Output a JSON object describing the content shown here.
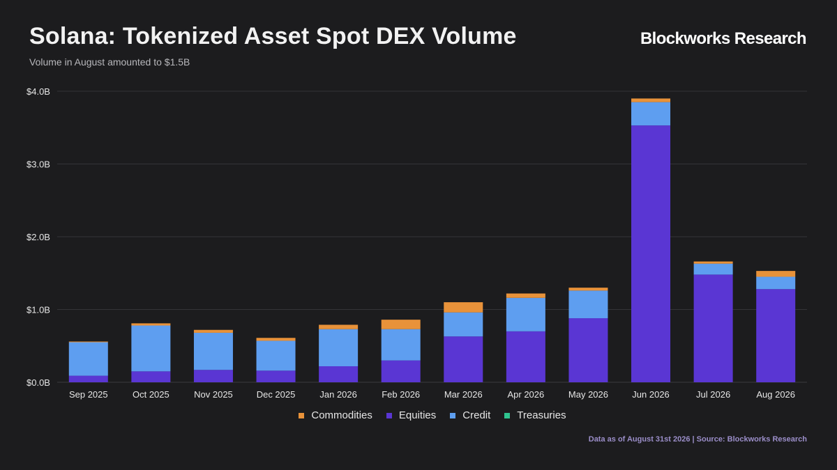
{
  "header": {
    "title": "Solana: Tokenized Asset Spot DEX Volume",
    "subtitle": "Volume in August amounted to $1.5B",
    "brand": "Blockworks Research"
  },
  "footer": {
    "source": "Data as of August 31st 2026 | Source: Blockworks Research"
  },
  "chart_data": {
    "type": "bar",
    "stacked": true,
    "title": "Solana: Tokenized Asset Spot DEX Volume",
    "subtitle": "Volume in August amounted to $1.5B",
    "categories": [
      "Sep 2025",
      "Oct 2025",
      "Nov 2025",
      "Dec 2025",
      "Jan 2026",
      "Feb 2026",
      "Mar 2026",
      "Apr 2026",
      "May 2026",
      "Jun 2026",
      "Jul 2026",
      "Aug 2026"
    ],
    "series": [
      {
        "name": "Treasuries",
        "color": "#2fc48f",
        "values": [
          0,
          0,
          0,
          0,
          0,
          0,
          0,
          0,
          0,
          0,
          0,
          0
        ]
      },
      {
        "name": "Equities",
        "color": "#5a36d3",
        "values": [
          0.09,
          0.15,
          0.17,
          0.16,
          0.22,
          0.3,
          0.63,
          0.7,
          0.88,
          3.53,
          1.48,
          1.28
        ]
      },
      {
        "name": "Credit",
        "color": "#5e9ef0",
        "values": [
          0.46,
          0.63,
          0.51,
          0.41,
          0.51,
          0.43,
          0.33,
          0.46,
          0.38,
          0.32,
          0.15,
          0.17
        ]
      },
      {
        "name": "Commodities",
        "color": "#e8923a",
        "values": [
          0.01,
          0.03,
          0.04,
          0.04,
          0.06,
          0.13,
          0.14,
          0.06,
          0.04,
          0.05,
          0.03,
          0.08
        ]
      }
    ],
    "legend": [
      "Commodities",
      "Equities",
      "Credit",
      "Treasuries"
    ],
    "y_ticks": [
      "$0.0B",
      "$1.0B",
      "$2.0B",
      "$3.0B",
      "$4.0B"
    ],
    "ylim": [
      0,
      4.0
    ],
    "grid": true,
    "legend_position": "bottom"
  }
}
